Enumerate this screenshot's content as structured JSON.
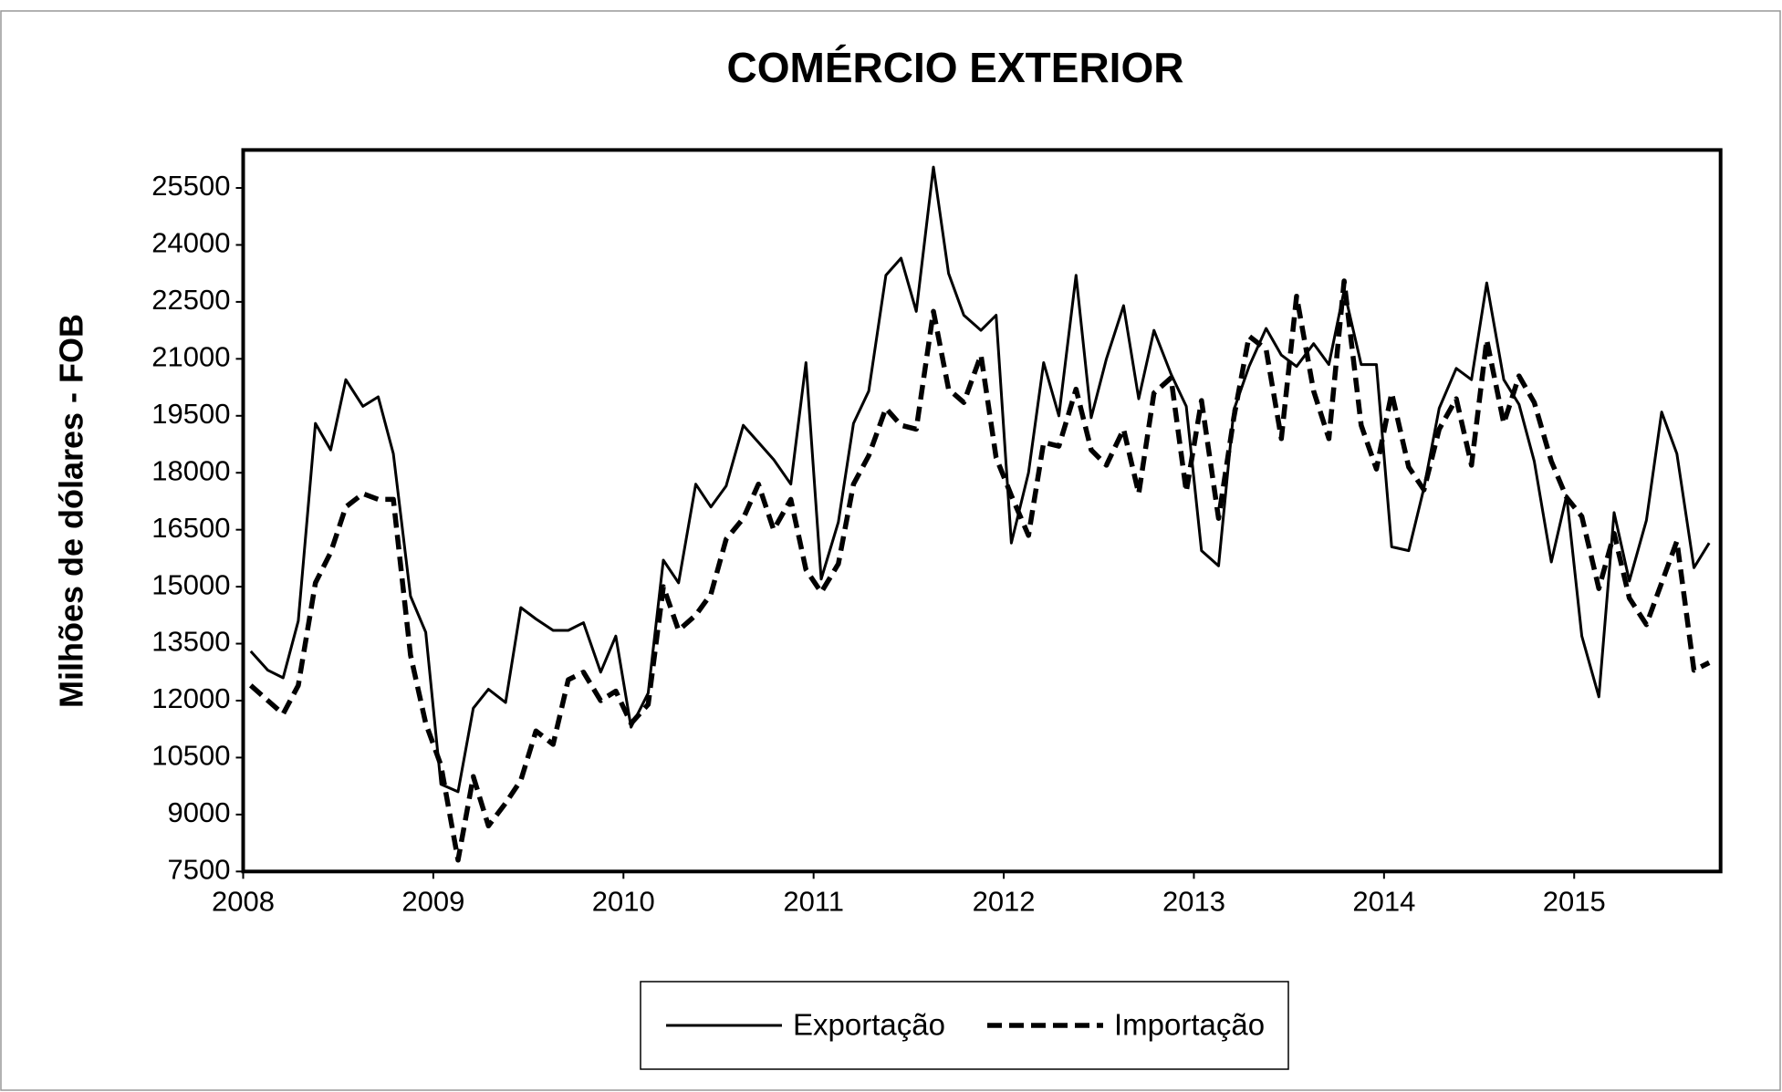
{
  "chart_data": {
    "type": "line",
    "title": "COMÉRCIO EXTERIOR",
    "y_label": "Milhões de dólares - FOB",
    "x": [
      2008.04,
      2008.13,
      2008.21,
      2008.29,
      2008.38,
      2008.46,
      2008.54,
      2008.63,
      2008.71,
      2008.79,
      2008.88,
      2008.96,
      2009.04,
      2009.13,
      2009.21,
      2009.29,
      2009.38,
      2009.46,
      2009.54,
      2009.63,
      2009.71,
      2009.79,
      2009.88,
      2009.96,
      2010.04,
      2010.13,
      2010.21,
      2010.29,
      2010.38,
      2010.46,
      2010.54,
      2010.63,
      2010.71,
      2010.79,
      2010.88,
      2010.96,
      2011.04,
      2011.13,
      2011.21,
      2011.29,
      2011.38,
      2011.46,
      2011.54,
      2011.63,
      2011.71,
      2011.79,
      2011.88,
      2011.96,
      2012.04,
      2012.13,
      2012.21,
      2012.29,
      2012.38,
      2012.46,
      2012.54,
      2012.63,
      2012.71,
      2012.79,
      2012.88,
      2012.96,
      2013.04,
      2013.13,
      2013.21,
      2013.29,
      2013.38,
      2013.46,
      2013.54,
      2013.63,
      2013.71,
      2013.79,
      2013.88,
      2013.96,
      2014.04,
      2014.13,
      2014.21,
      2014.29,
      2014.38,
      2014.46,
      2014.54,
      2014.63,
      2014.71,
      2014.79,
      2014.88,
      2014.96,
      2015.04,
      2015.13,
      2015.21,
      2015.29,
      2015.38,
      2015.46,
      2015.54,
      2015.63,
      2015.71
    ],
    "series": [
      {
        "name": "Exportação",
        "color": "#000000",
        "dash": "solid",
        "values": [
          13300,
          12800,
          12600,
          14100,
          19300,
          18600,
          20450,
          19750,
          20000,
          18500,
          14750,
          13800,
          9800,
          9600,
          11800,
          12300,
          11950,
          14450,
          14150,
          13850,
          13850,
          14050,
          12750,
          13700,
          11300,
          12200,
          15700,
          15100,
          17700,
          17100,
          17650,
          19250,
          18800,
          18350,
          17700,
          20900,
          15200,
          16700,
          19300,
          20150,
          23200,
          23650,
          22250,
          26050,
          23250,
          22150,
          21750,
          22150,
          16150,
          18000,
          20900,
          19500,
          23200,
          19450,
          21000,
          22400,
          19950,
          21750,
          20600,
          19750,
          15950,
          15550,
          19650,
          20800,
          21800,
          21100,
          20800,
          21400,
          20850,
          22800,
          20850,
          20850,
          16050,
          15950,
          17600,
          19700,
          20750,
          20450,
          23000,
          20450,
          19800,
          18300,
          15650,
          17400,
          13700,
          12100,
          16950,
          15150,
          16750,
          19600,
          18500,
          15500,
          16150
        ]
      },
      {
        "name": "Importação",
        "color": "#000000",
        "dash": "dashed",
        "values": [
          12400,
          12000,
          11650,
          12400,
          15100,
          15900,
          17100,
          17450,
          17300,
          17300,
          13200,
          11400,
          10300,
          7800,
          10000,
          8700,
          9300,
          9900,
          11200,
          10850,
          12550,
          12750,
          12000,
          12250,
          11400,
          11900,
          15000,
          13850,
          14250,
          14800,
          16250,
          16800,
          17700,
          16500,
          17300,
          15450,
          14850,
          15600,
          17700,
          18450,
          19700,
          19250,
          19150,
          22250,
          20200,
          19850,
          21100,
          18400,
          17400,
          16350,
          18800,
          18700,
          20200,
          18600,
          18200,
          19150,
          17450,
          20100,
          20500,
          17500,
          19900,
          16800,
          19450,
          21600,
          21250,
          18900,
          22650,
          20150,
          18900,
          23050,
          19250,
          18100,
          20100,
          18150,
          17550,
          19150,
          19950,
          18200,
          21500,
          19300,
          20550,
          19850,
          18300,
          17350,
          16850,
          14950,
          16400,
          14700,
          14000,
          15100,
          16200,
          12800,
          13000
        ]
      }
    ],
    "xlim": [
      2008,
      2015.77
    ],
    "xticks": [
      2008,
      2009,
      2010,
      2011,
      2012,
      2013,
      2014,
      2015
    ],
    "ylim": [
      7500,
      26500
    ],
    "yticks": [
      7500,
      9000,
      10500,
      12000,
      13500,
      15000,
      16500,
      18000,
      19500,
      21000,
      22500,
      24000,
      25500
    ],
    "grid": false,
    "legend": "bottom"
  }
}
